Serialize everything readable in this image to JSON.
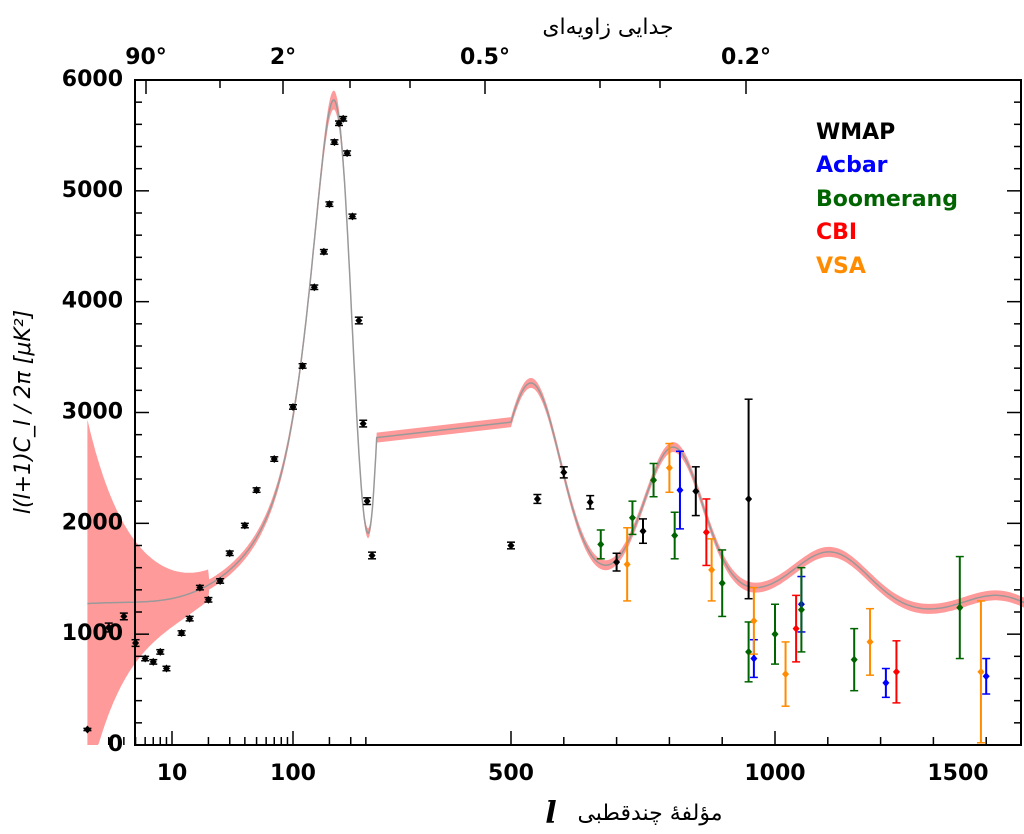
{
  "chart_data": {
    "type": "scatter",
    "top_axis_title": "جدایی زاویه‌ای",
    "top_tick_labels": [
      "90°",
      "2°",
      "0.5°",
      "0.2°"
    ],
    "xlabel_text": "مؤلفهٔ چندقطبی",
    "xlabel_symbol": "l",
    "ylabel": "l(l+1)C_l / 2π [μK²]",
    "x_tick_labels": [
      "10",
      "100",
      "500",
      "1000",
      "1500"
    ],
    "y_tick_labels": [
      "0",
      "1000",
      "2000",
      "3000",
      "4000",
      "5000",
      "6000"
    ],
    "ylim": [
      0,
      6000
    ],
    "x_scale": "logarithmic for l < 500, linear for l ≥ 500",
    "legend_position": "top-right",
    "series": [
      {
        "name": "WMAP",
        "color": "#000000",
        "points": [
          {
            "l": 2,
            "y": 140,
            "err": 10
          },
          {
            "l": 3,
            "y": 1060,
            "err": 40
          },
          {
            "l": 4,
            "y": 1160,
            "err": 30
          },
          {
            "l": 5,
            "y": 920,
            "err": 30
          },
          {
            "l": 6,
            "y": 780,
            "err": 20
          },
          {
            "l": 7,
            "y": 750,
            "err": 20
          },
          {
            "l": 8,
            "y": 840,
            "err": 20
          },
          {
            "l": 9,
            "y": 690,
            "err": 20
          },
          {
            "l": 12,
            "y": 1010,
            "err": 20
          },
          {
            "l": 14,
            "y": 1140,
            "err": 20
          },
          {
            "l": 17,
            "y": 1420,
            "err": 20
          },
          {
            "l": 20,
            "y": 1310,
            "err": 20
          },
          {
            "l": 25,
            "y": 1480,
            "err": 20
          },
          {
            "l": 30,
            "y": 1730,
            "err": 20
          },
          {
            "l": 40,
            "y": 1980,
            "err": 20
          },
          {
            "l": 50,
            "y": 2300,
            "err": 20
          },
          {
            "l": 70,
            "y": 2580,
            "err": 20
          },
          {
            "l": 100,
            "y": 3050,
            "err": 20
          },
          {
            "l": 120,
            "y": 3420,
            "err": 20
          },
          {
            "l": 150,
            "y": 4130,
            "err": 20
          },
          {
            "l": 180,
            "y": 4450,
            "err": 20
          },
          {
            "l": 200,
            "y": 4880,
            "err": 20
          },
          {
            "l": 220,
            "y": 5440,
            "err": 20
          },
          {
            "l": 240,
            "y": 5610,
            "err": 20
          },
          {
            "l": 260,
            "y": 5650,
            "err": 20
          },
          {
            "l": 280,
            "y": 5340,
            "err": 20
          },
          {
            "l": 310,
            "y": 4770,
            "err": 20
          },
          {
            "l": 350,
            "y": 3830,
            "err": 30
          },
          {
            "l": 380,
            "y": 2900,
            "err": 30
          },
          {
            "l": 410,
            "y": 2200,
            "err": 30
          },
          {
            "l": 450,
            "y": 1710,
            "err": 30
          },
          {
            "l": 500,
            "y": 1800,
            "err": 30
          },
          {
            "l": 550,
            "y": 2220,
            "err": 40
          },
          {
            "l": 600,
            "y": 2460,
            "err": 50
          },
          {
            "l": 650,
            "y": 2190,
            "err": 60
          },
          {
            "l": 700,
            "y": 1650,
            "err": 80
          },
          {
            "l": 750,
            "y": 1930,
            "err": 110
          },
          {
            "l": 850,
            "y": 2290,
            "err": 220
          },
          {
            "l": 950,
            "y": 2220,
            "err": 900
          }
        ]
      },
      {
        "name": "Acbar",
        "color": "#0000ff",
        "points": [
          {
            "l": 820,
            "y": 2300,
            "err": 350
          },
          {
            "l": 960,
            "y": 780,
            "err": 170
          },
          {
            "l": 1050,
            "y": 1270,
            "err": 250
          },
          {
            "l": 1210,
            "y": 560,
            "err": 130
          },
          {
            "l": 1400,
            "y": 620,
            "err": 160
          },
          {
            "l": 1600,
            "y": 300,
            "err": 120
          }
        ]
      },
      {
        "name": "Boomerang",
        "color": "#006400",
        "points": [
          {
            "l": 670,
            "y": 1810,
            "err": 130
          },
          {
            "l": 730,
            "y": 2050,
            "err": 150
          },
          {
            "l": 770,
            "y": 2390,
            "err": 150
          },
          {
            "l": 810,
            "y": 1890,
            "err": 210
          },
          {
            "l": 900,
            "y": 1460,
            "err": 300
          },
          {
            "l": 950,
            "y": 840,
            "err": 270
          },
          {
            "l": 1000,
            "y": 1000,
            "err": 270
          },
          {
            "l": 1050,
            "y": 1220,
            "err": 380
          },
          {
            "l": 1150,
            "y": 770,
            "err": 280
          },
          {
            "l": 1350,
            "y": 1240,
            "err": 460
          }
        ]
      },
      {
        "name": "CBI",
        "color": "#ff0000",
        "points": [
          {
            "l": 870,
            "y": 1920,
            "err": 300
          },
          {
            "l": 1040,
            "y": 1050,
            "err": 300
          },
          {
            "l": 1230,
            "y": 660,
            "err": 280
          }
        ]
      },
      {
        "name": "VSA",
        "color": "#ff8c00",
        "points": [
          {
            "l": 720,
            "y": 1630,
            "err": 330
          },
          {
            "l": 800,
            "y": 2500,
            "err": 220
          },
          {
            "l": 880,
            "y": 1580,
            "err": 280
          },
          {
            "l": 960,
            "y": 1120,
            "err": 300
          },
          {
            "l": 1020,
            "y": 640,
            "err": 290
          },
          {
            "l": 1180,
            "y": 930,
            "err": 300
          },
          {
            "l": 1390,
            "y": 660,
            "err": 640
          }
        ]
      }
    ]
  }
}
